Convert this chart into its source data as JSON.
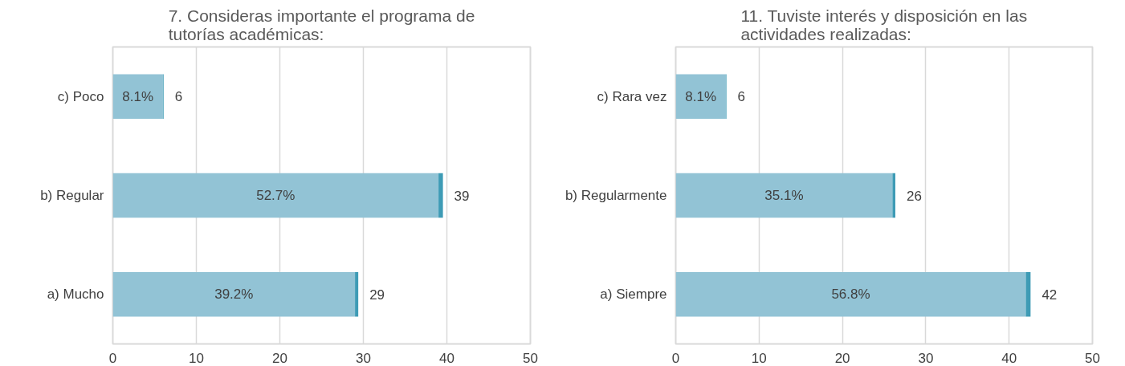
{
  "chart_data": [
    {
      "type": "bar",
      "orientation": "horizontal",
      "stacked": true,
      "title": "7. Consideras importante el programa de\ntutorías académicas:",
      "categories": [
        "c) Poco",
        "b) Regular",
        "a) Mucho"
      ],
      "series": [
        {
          "color": "#92c3d5",
          "values": [
            6,
            39,
            29
          ],
          "value_labels": [
            "6",
            "39",
            "29"
          ]
        },
        {
          "color": "#3e9bb5",
          "values": [
            0.08,
            0.53,
            0.39
          ]
        }
      ],
      "annotations": [
        "8.1%",
        "52.7%",
        "39.2%"
      ],
      "xlim": [
        0,
        50
      ],
      "xticks": [
        0,
        10,
        20,
        30,
        40,
        50
      ],
      "grid": "x"
    },
    {
      "type": "bar",
      "orientation": "horizontal",
      "stacked": true,
      "title": "11. Tuviste interés y disposición en las\nactividades realizadas:",
      "categories": [
        "c) Rara vez",
        "b) Regularmente",
        "a) Siempre"
      ],
      "series": [
        {
          "color": "#92c3d5",
          "values": [
            6,
            26,
            42
          ],
          "value_labels": [
            "6",
            "26",
            "42"
          ]
        },
        {
          "color": "#3e9bb5",
          "values": [
            0.08,
            0.35,
            0.57
          ]
        }
      ],
      "annotations": [
        "8.1%",
        "35.1%",
        "56.8%"
      ],
      "xlim": [
        0,
        50
      ],
      "xticks": [
        0,
        10,
        20,
        30,
        40,
        50
      ],
      "grid": "x"
    }
  ]
}
